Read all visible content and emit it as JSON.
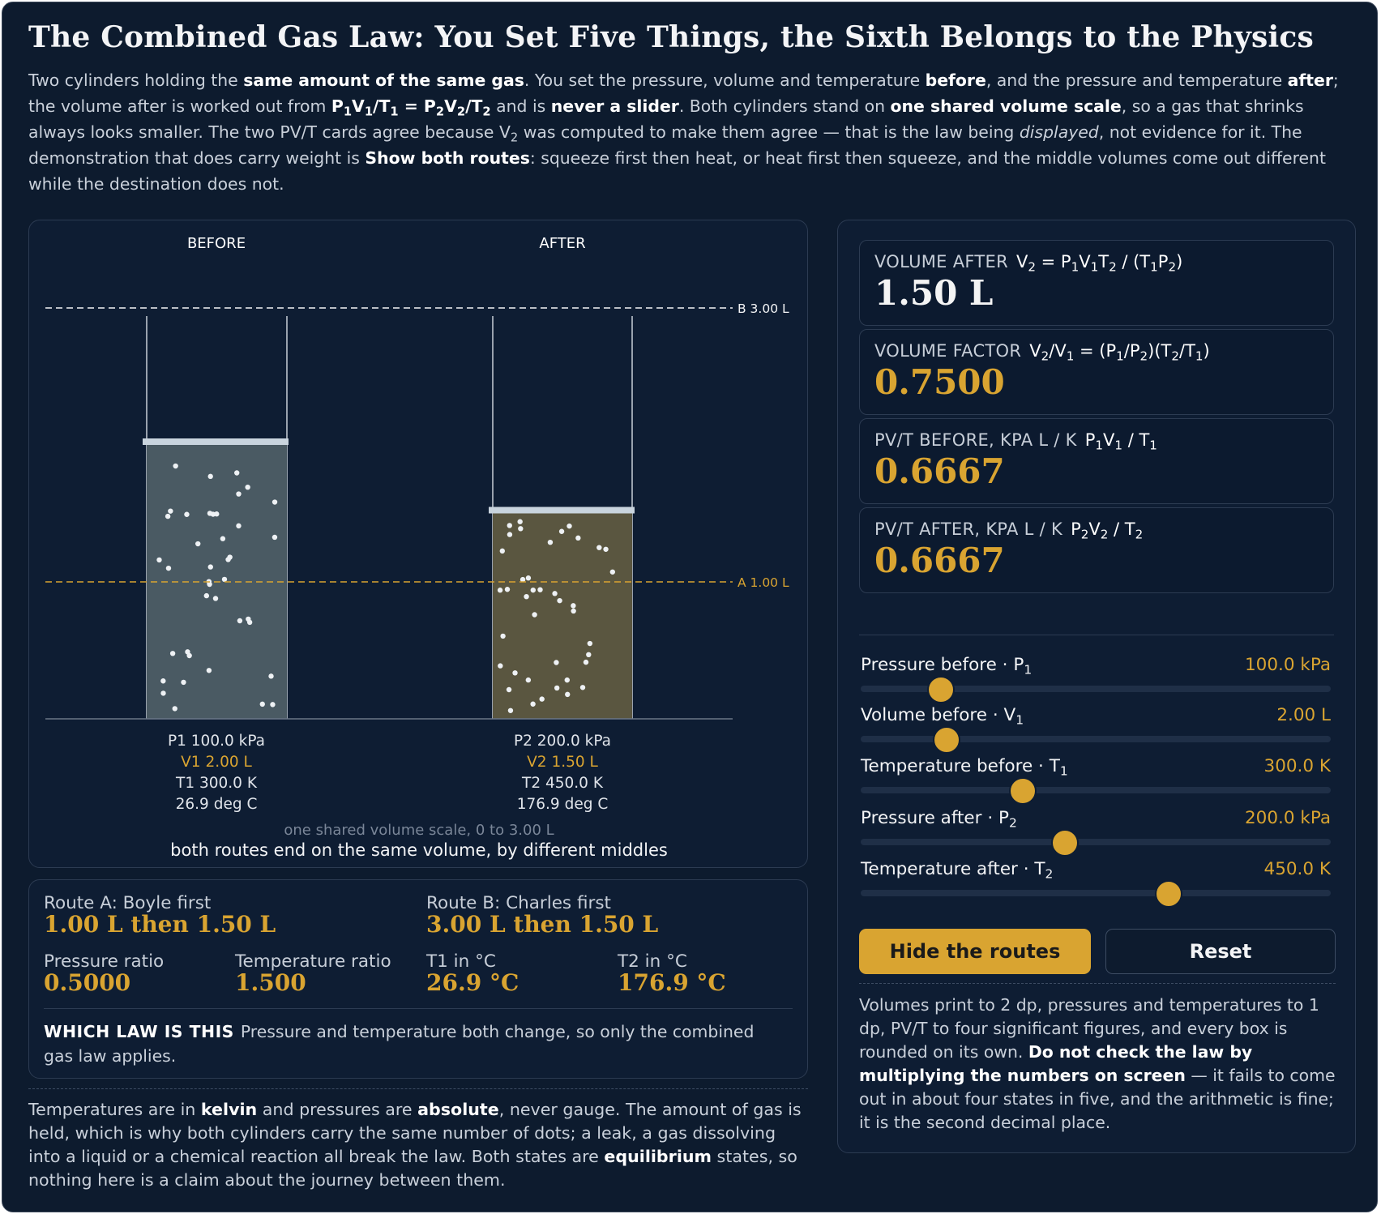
{
  "title": "The Combined Gas Law: You Set Five Things, the Sixth Belongs to the Physics",
  "intro": [
    {
      "t": "Two cylinders holding the "
    },
    {
      "t": "same amount of the same gas",
      "b": true
    },
    {
      "t": ". You set the pressure, volume and temperature "
    },
    {
      "t": "before",
      "b": true
    },
    {
      "t": ", and the pressure and temperature "
    },
    {
      "t": "after",
      "b": true
    },
    {
      "t": "; the volume after is worked out from "
    },
    {
      "t": "P",
      "b": true
    },
    {
      "t": "1",
      "b": true,
      "sub": true
    },
    {
      "t": "V",
      "b": true
    },
    {
      "t": "1",
      "b": true,
      "sub": true
    },
    {
      "t": "/T",
      "b": true
    },
    {
      "t": "1",
      "b": true,
      "sub": true
    },
    {
      "t": " = P",
      "b": true
    },
    {
      "t": "2",
      "b": true,
      "sub": true
    },
    {
      "t": "V",
      "b": true
    },
    {
      "t": "2",
      "b": true,
      "sub": true
    },
    {
      "t": "/T",
      "b": true
    },
    {
      "t": "2",
      "b": true,
      "sub": true
    },
    {
      "t": " and is "
    },
    {
      "t": "never a slider",
      "b": true
    },
    {
      "t": ". Both cylinders stand on "
    },
    {
      "t": "one shared volume scale",
      "b": true
    },
    {
      "t": ", so a gas that shrinks always looks smaller. The two PV/T cards agree because V"
    },
    {
      "t": "2",
      "sub": true
    },
    {
      "t": " was computed to make them agree — that is the law being "
    },
    {
      "t": "displayed",
      "i": true
    },
    {
      "t": ", not evidence for it. The demonstration that does carry weight is "
    },
    {
      "t": "Show both routes",
      "b": true
    },
    {
      "t": ": squeeze first then heat, or heat first then squeeze, and the middle volumes come out different while the destination does not."
    }
  ],
  "viz": {
    "before_heading": "BEFORE",
    "after_heading": "AFTER",
    "line_b_label": "B 3.00 L",
    "line_a_label": "A 1.00 L",
    "scale_max": 3.0,
    "line_b_value": 3.0,
    "line_a_value": 1.0,
    "dot_count": 40,
    "before": {
      "p": "P1 100.0 kPa",
      "v": "V1 2.00 L",
      "t": "T1 300.0 K",
      "c": "26.9 deg C",
      "volume": 2.0
    },
    "after": {
      "p": "P2 200.0 kPa",
      "v": "V2 1.50 L",
      "t": "T2 450.0 K",
      "c": "176.9 deg C",
      "volume": 1.5
    },
    "scale_caption": "one shared volume scale, 0 to 3.00 L",
    "routes_caption": "both routes end on the same volume, by different middles"
  },
  "cards": [
    {
      "label": "VOLUME AFTER",
      "formula": "V<sub>2</sub> = P<sub>1</sub>V<sub>1</sub>T<sub>2</sub> / (T<sub>1</sub>P<sub>2</sub>)",
      "value": "1.50 L",
      "tone": "w"
    },
    {
      "label": "VOLUME FACTOR",
      "formula": "V<sub>2</sub>/V<sub>1</sub> = (P<sub>1</sub>/P<sub>2</sub>)(T<sub>2</sub>/T<sub>1</sub>)",
      "value": "0.7500",
      "tone": "g"
    },
    {
      "label": "PV/T BEFORE, KPA L / K",
      "formula": "P<sub>1</sub>V<sub>1</sub> / T<sub>1</sub>",
      "value": "0.6667",
      "tone": "g"
    },
    {
      "label": "PV/T AFTER, KPA L / K",
      "formula": "P<sub>2</sub>V<sub>2</sub> / T<sub>2</sub>",
      "value": "0.6667",
      "tone": "g"
    }
  ],
  "sliders": [
    {
      "name": "slider-pressure-before",
      "label": "Pressure before · P",
      "sub": "1",
      "value": "100.0 kPa",
      "fraction": 0.17
    },
    {
      "name": "slider-volume-before",
      "label": "Volume before · V",
      "sub": "1",
      "value": "2.00 L",
      "fraction": 0.183
    },
    {
      "name": "slider-temperature-before",
      "label": "Temperature before · T",
      "sub": "1",
      "value": "300.0 K",
      "fraction": 0.345
    },
    {
      "name": "slider-pressure-after",
      "label": "Pressure after · P",
      "sub": "2",
      "value": "200.0 kPa",
      "fraction": 0.435
    },
    {
      "name": "slider-temperature-after",
      "label": "Temperature after · T",
      "sub": "2",
      "value": "450.0 K",
      "fraction": 0.655
    }
  ],
  "buttons": {
    "routes": "Hide the routes",
    "reset": "Reset"
  },
  "side_note": [
    {
      "t": "Volumes print to 2 dp, pressures and temperatures to 1 dp, PV/T to four significant figures, and every box is rounded on its own. "
    },
    {
      "t": "Do not check the law by multiplying the numbers on screen",
      "b": true
    },
    {
      "t": " — it fails to come out in about four states in five, and the arithmetic is fine; it is the second decimal place."
    }
  ],
  "routes": {
    "a_label": "Route A: Boyle first",
    "a_value": "1.00 L then 1.50 L",
    "b_label": "Route B: Charles first",
    "b_value": "3.00 L then 1.50 L",
    "pressure_ratio_label": "Pressure ratio",
    "pressure_ratio": "0.5000",
    "temperature_ratio_label": "Temperature ratio",
    "temperature_ratio": "1.500",
    "t1_label": "T1 in °C",
    "t1_value": "26.9 °C",
    "t2_label": "T2 in °C",
    "t2_value": "176.9 °C",
    "law_heading": "WHICH LAW IS THIS",
    "law_text": "Pressure and temperature both change, so only the combined gas law applies."
  },
  "footnote": [
    {
      "t": "Temperatures are in "
    },
    {
      "t": "kelvin",
      "b": true
    },
    {
      "t": " and pressures are "
    },
    {
      "t": "absolute",
      "b": true
    },
    {
      "t": ", never gauge. The amount of gas is held, which is why both cylinders carry the same number of dots; a leak, a gas dissolving into a liquid or a chemical reaction all break the law. Both states are "
    },
    {
      "t": "equilibrium",
      "b": true
    },
    {
      "t": " states, so nothing here is a claim about the journey between them."
    }
  ],
  "colors": {
    "accent": "#d9a431",
    "background": "#0d1b2e",
    "panel": "#0e1d33",
    "gas_before": "#4a5a63",
    "gas_after": "#5a5640"
  }
}
